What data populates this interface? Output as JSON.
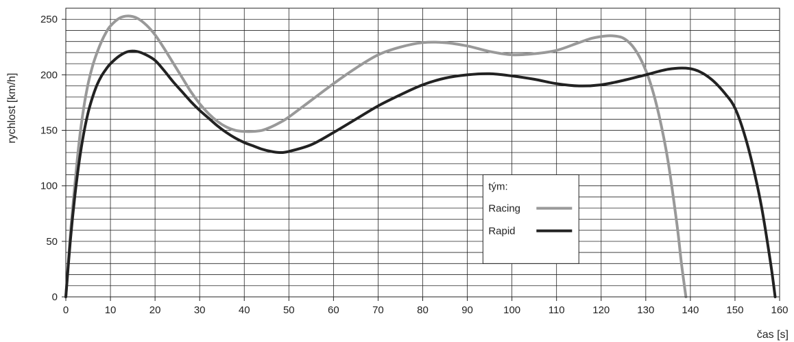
{
  "chart_data": {
    "type": "line",
    "xlabel": "čas [s]",
    "ylabel": "rychlost [km/h]",
    "xlim": [
      0,
      160
    ],
    "ylim": [
      0,
      260
    ],
    "x_ticks": [
      0,
      10,
      20,
      30,
      40,
      50,
      60,
      70,
      80,
      90,
      100,
      110,
      120,
      130,
      140,
      150,
      160
    ],
    "y_ticks": [
      0,
      50,
      100,
      150,
      200,
      250
    ],
    "grid": "on",
    "legend": {
      "title": "tým:",
      "placement": "center-right"
    },
    "series": [
      {
        "name": "Racing",
        "color": "#999999",
        "points": [
          [
            0,
            0
          ],
          [
            1,
            55
          ],
          [
            2,
            100
          ],
          [
            3,
            140
          ],
          [
            4,
            170
          ],
          [
            5,
            192
          ],
          [
            6,
            208
          ],
          [
            7,
            220
          ],
          [
            8,
            230
          ],
          [
            9,
            238
          ],
          [
            10,
            244
          ],
          [
            12,
            251
          ],
          [
            14,
            253
          ],
          [
            16,
            251
          ],
          [
            18,
            245
          ],
          [
            20,
            236
          ],
          [
            22,
            224
          ],
          [
            24,
            211
          ],
          [
            26,
            198
          ],
          [
            28,
            185
          ],
          [
            30,
            174
          ],
          [
            32,
            165
          ],
          [
            34,
            158
          ],
          [
            36,
            153
          ],
          [
            38,
            150
          ],
          [
            40,
            149
          ],
          [
            42,
            149
          ],
          [
            44,
            150
          ],
          [
            46,
            153
          ],
          [
            48,
            157
          ],
          [
            50,
            162
          ],
          [
            55,
            177
          ],
          [
            60,
            192
          ],
          [
            65,
            206
          ],
          [
            70,
            218
          ],
          [
            75,
            225
          ],
          [
            80,
            229
          ],
          [
            85,
            229
          ],
          [
            90,
            226
          ],
          [
            95,
            221
          ],
          [
            100,
            218
          ],
          [
            105,
            219
          ],
          [
            110,
            222
          ],
          [
            115,
            229
          ],
          [
            118,
            233
          ],
          [
            121,
            235
          ],
          [
            123,
            235
          ],
          [
            125,
            233
          ],
          [
            127,
            226
          ],
          [
            129,
            213
          ],
          [
            131,
            193
          ],
          [
            133,
            163
          ],
          [
            135,
            122
          ],
          [
            137,
            65
          ],
          [
            138,
            30
          ],
          [
            139,
            0
          ]
        ]
      },
      {
        "name": "Rapid",
        "color": "#222222",
        "points": [
          [
            0,
            0
          ],
          [
            1,
            50
          ],
          [
            2,
            90
          ],
          [
            3,
            122
          ],
          [
            4,
            147
          ],
          [
            5,
            166
          ],
          [
            6,
            180
          ],
          [
            7,
            191
          ],
          [
            8,
            199
          ],
          [
            9,
            205
          ],
          [
            10,
            210
          ],
          [
            12,
            217
          ],
          [
            14,
            221
          ],
          [
            16,
            221
          ],
          [
            18,
            218
          ],
          [
            20,
            213
          ],
          [
            22,
            204
          ],
          [
            24,
            194
          ],
          [
            26,
            185
          ],
          [
            28,
            176
          ],
          [
            30,
            168
          ],
          [
            32,
            161
          ],
          [
            34,
            154
          ],
          [
            36,
            148
          ],
          [
            38,
            143
          ],
          [
            40,
            139
          ],
          [
            42,
            136
          ],
          [
            44,
            133
          ],
          [
            46,
            131
          ],
          [
            48,
            130
          ],
          [
            50,
            131
          ],
          [
            55,
            137
          ],
          [
            60,
            148
          ],
          [
            65,
            160
          ],
          [
            70,
            172
          ],
          [
            75,
            182
          ],
          [
            80,
            191
          ],
          [
            85,
            197
          ],
          [
            90,
            200
          ],
          [
            95,
            201
          ],
          [
            100,
            199
          ],
          [
            105,
            196
          ],
          [
            110,
            192
          ],
          [
            115,
            190
          ],
          [
            120,
            191
          ],
          [
            125,
            195
          ],
          [
            130,
            200
          ],
          [
            135,
            205
          ],
          [
            139,
            206
          ],
          [
            142,
            203
          ],
          [
            145,
            195
          ],
          [
            148,
            182
          ],
          [
            150,
            170
          ],
          [
            152,
            148
          ],
          [
            154,
            118
          ],
          [
            156,
            80
          ],
          [
            158,
            30
          ],
          [
            159,
            0
          ]
        ]
      }
    ]
  }
}
